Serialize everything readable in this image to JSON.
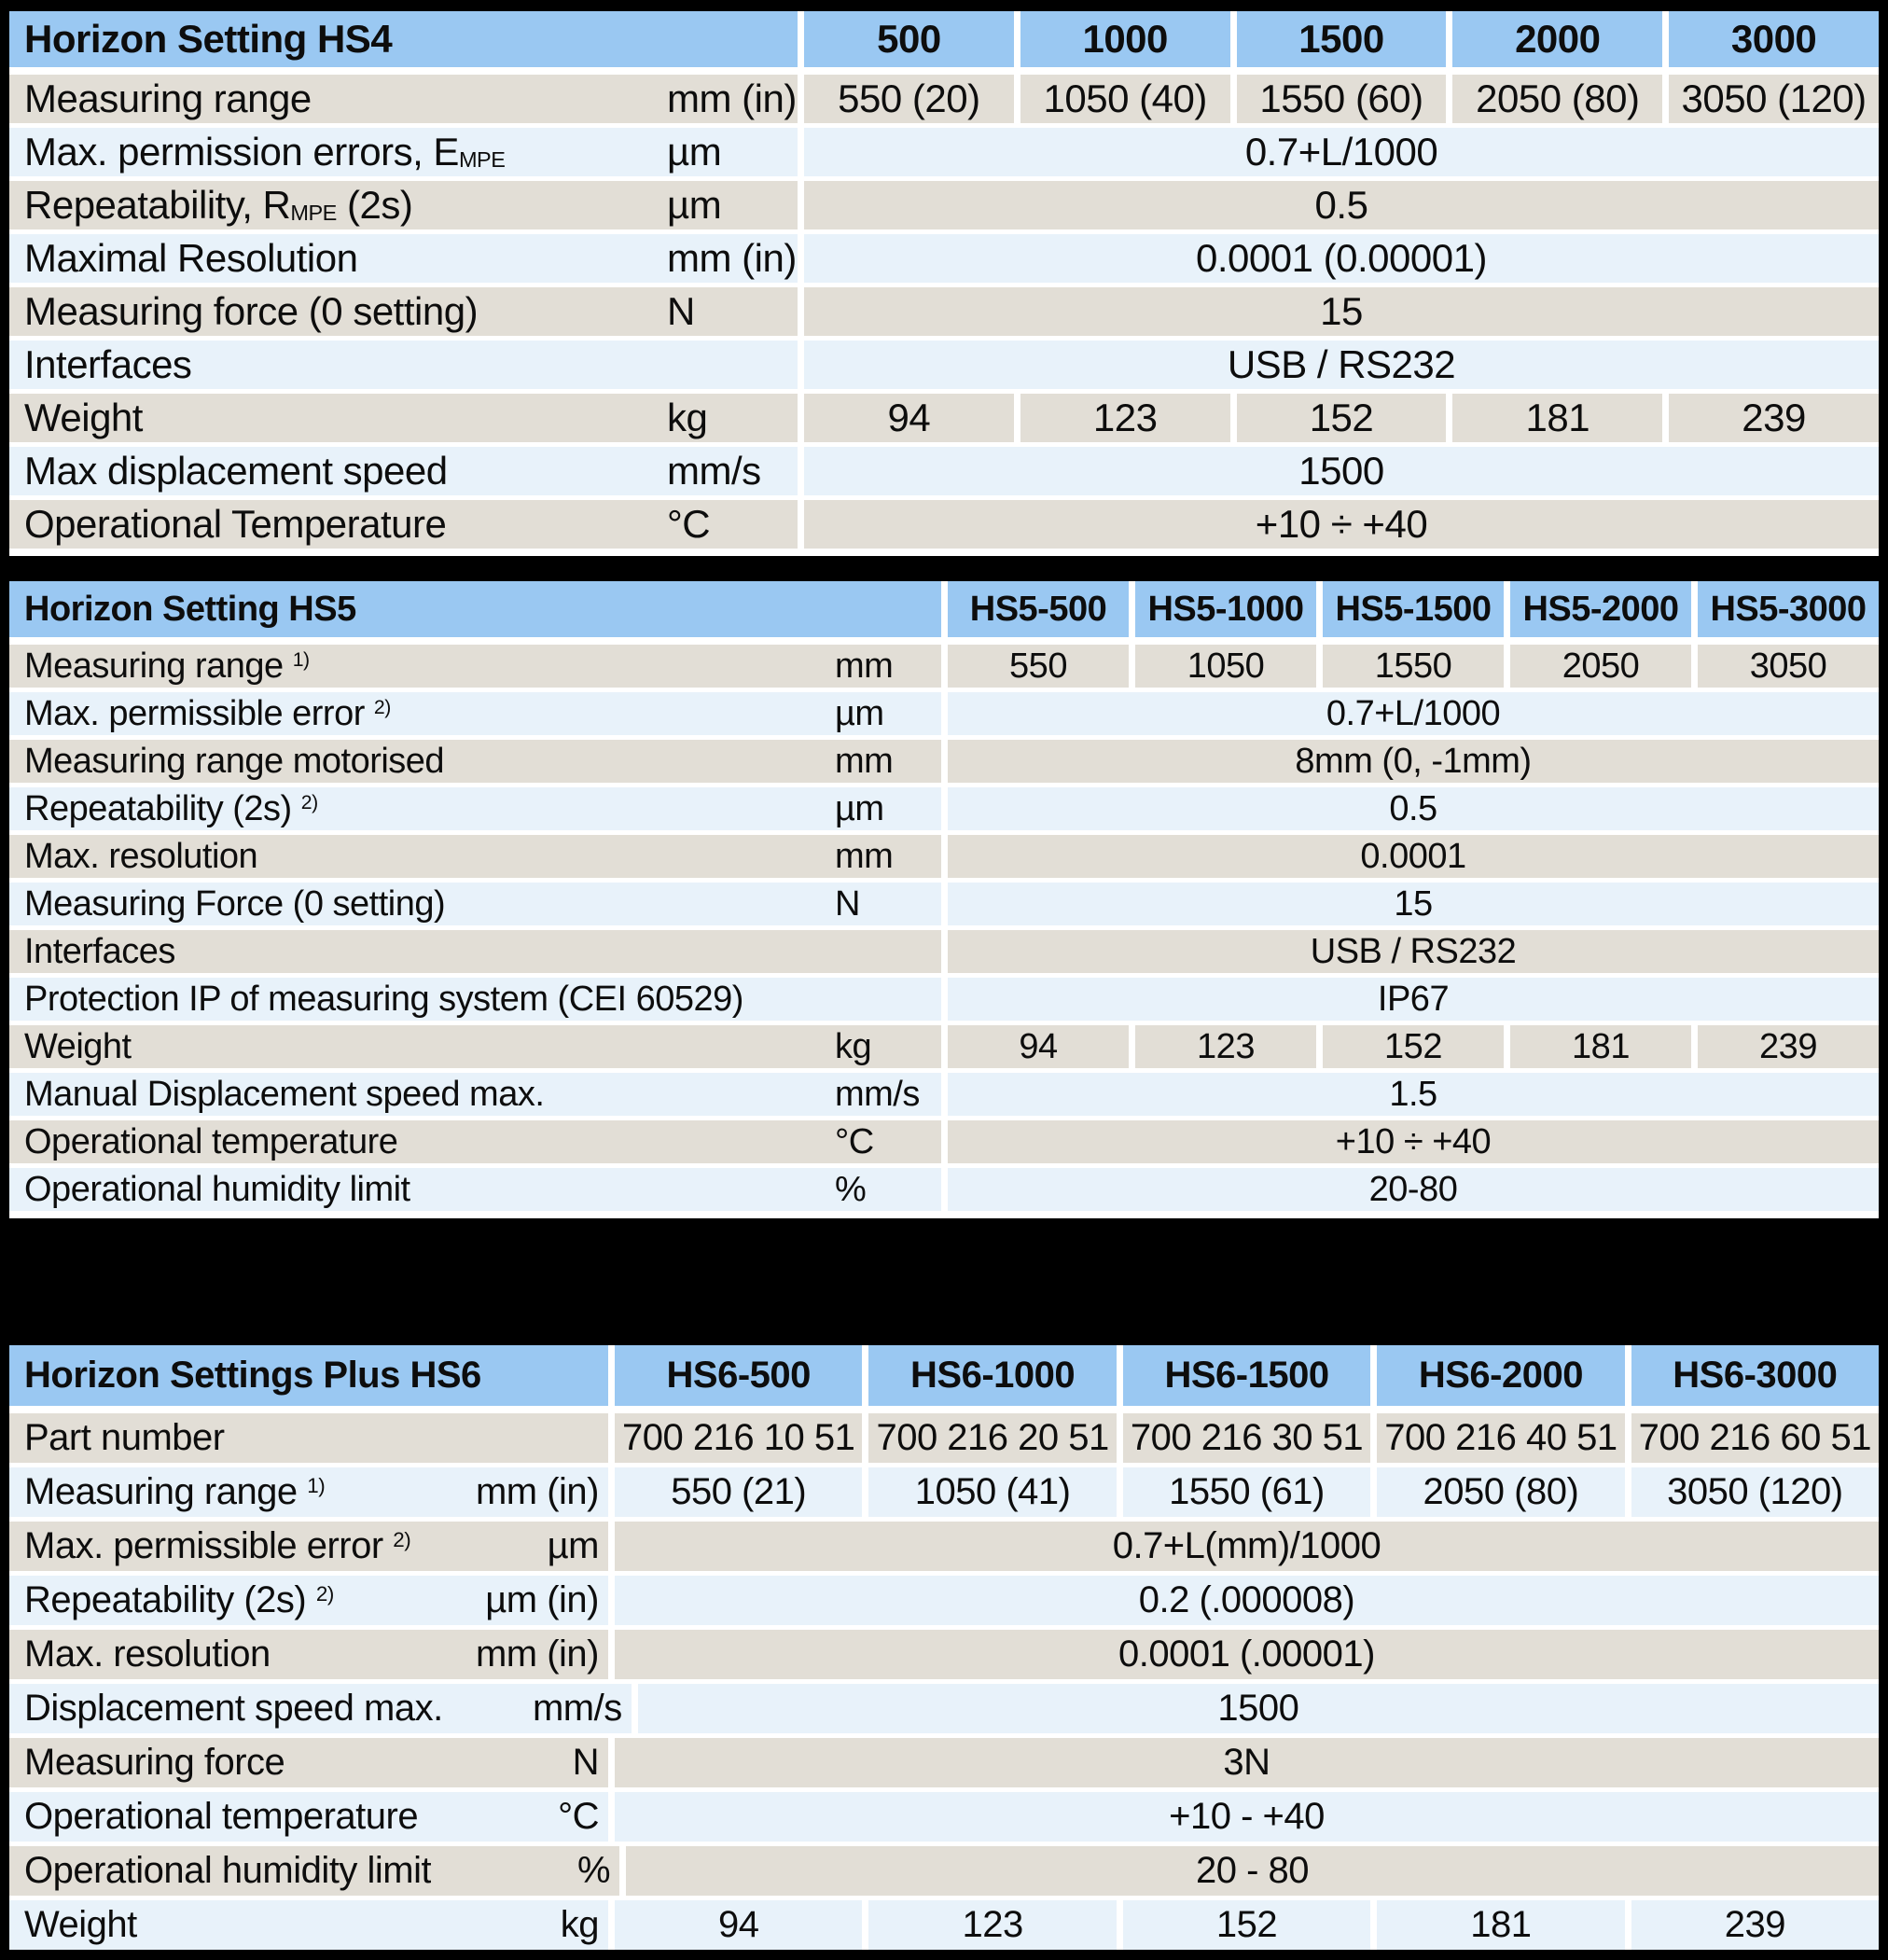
{
  "colors": {
    "header_blue": "#9AC8F2",
    "row_tan": "#E2DED6",
    "row_light_blue": "#E8F2FA",
    "gutter_white": "#FFFFFF",
    "page_background": "#000000",
    "text": "#0D0D0D"
  },
  "tables": [
    {
      "id": "hs4",
      "title": "Horizon Setting HS4",
      "columns": [
        "500",
        "1000",
        "1500",
        "2000",
        "3000"
      ],
      "rows": [
        {
          "label": {
            "pre": "Measuring range"
          },
          "unit": "mm (in)",
          "values": [
            "550 (20)",
            "1050 (40)",
            "1550 (60)",
            "2050 (80)",
            "3050 (120)"
          ]
        },
        {
          "label": {
            "pre": "Max. permission errors, E",
            "sub": "MPE"
          },
          "unit": "µm",
          "span": "0.7+L/1000"
        },
        {
          "label": {
            "pre": "Repeatability, R",
            "sub": "MPE",
            "post": " (2s)"
          },
          "unit": "µm",
          "span": "0.5"
        },
        {
          "label": {
            "pre": "Maximal Resolution"
          },
          "unit": "mm (in)",
          "span": "0.0001 (0.00001)"
        },
        {
          "label": {
            "pre": "Measuring force (0 setting)"
          },
          "unit": "N",
          "span": "15"
        },
        {
          "label": {
            "pre": "Interfaces"
          },
          "unit": "",
          "span": "USB / RS232"
        },
        {
          "label": {
            "pre": "Weight"
          },
          "unit": "kg",
          "values": [
            "94",
            "123",
            "152",
            "181",
            "239"
          ]
        },
        {
          "label": {
            "pre": "Max displacement speed"
          },
          "unit": "mm/s",
          "span": "1500"
        },
        {
          "label": {
            "pre": "Operational Temperature"
          },
          "unit": "°C",
          "span": "+10 ÷ +40"
        }
      ]
    },
    {
      "id": "hs5",
      "title": "Horizon Setting HS5",
      "columns": [
        "HS5-500",
        "HS5-1000",
        "HS5-1500",
        "HS5-2000",
        "HS5-3000"
      ],
      "rows": [
        {
          "label": {
            "pre": "Measuring range ",
            "sup": "1)"
          },
          "unit": "mm",
          "values": [
            "550",
            "1050",
            "1550",
            "2050",
            "3050"
          ]
        },
        {
          "label": {
            "pre": "Max. permissible error ",
            "sup": "2)"
          },
          "unit": "µm",
          "span": "0.7+L/1000"
        },
        {
          "label": {
            "pre": "Measuring range motorised"
          },
          "unit": "mm",
          "span": "8mm (0, -1mm)"
        },
        {
          "label": {
            "pre": "Repeatability (2s) ",
            "sup": "2)"
          },
          "unit": "µm",
          "span": "0.5"
        },
        {
          "label": {
            "pre": "Max. resolution"
          },
          "unit": "mm",
          "span": "0.0001"
        },
        {
          "label": {
            "pre": "Measuring Force (0 setting)"
          },
          "unit": "N",
          "span": "15"
        },
        {
          "label": {
            "pre": "Interfaces"
          },
          "unit": "",
          "span": "USB / RS232"
        },
        {
          "label": {
            "pre": "Protection IP of measuring system (CEI 60529)"
          },
          "unit": "",
          "span": "IP67"
        },
        {
          "label": {
            "pre": "Weight"
          },
          "unit": "kg",
          "values": [
            "94",
            "123",
            "152",
            "181",
            "239"
          ]
        },
        {
          "label": {
            "pre": "Manual Displacement speed max."
          },
          "unit": "mm/s",
          "span": "1.5"
        },
        {
          "label": {
            "pre": "Operational temperature"
          },
          "unit": "°C",
          "span": "+10 ÷ +40"
        },
        {
          "label": {
            "pre": "Operational humidity limit"
          },
          "unit": "%",
          "span": "20-80"
        }
      ]
    },
    {
      "id": "hs6",
      "title": "Horizon Settings Plus HS6",
      "columns": [
        "HS6-500",
        "HS6-1000",
        "HS6-1500",
        "HS6-2000",
        "HS6-3000"
      ],
      "rows": [
        {
          "label": {
            "pre": "Part number"
          },
          "unit": "",
          "values": [
            "700 216 10 51",
            "700 216 20 51",
            "700 216 30 51",
            "700 216 40 51",
            "700 216 60 51"
          ]
        },
        {
          "label": {
            "pre": "Measuring range ",
            "sup": "1)"
          },
          "unit": "mm (in)",
          "values": [
            "550 (21)",
            "1050 (41)",
            "1550 (61)",
            "2050 (80)",
            "3050 (120)"
          ]
        },
        {
          "label": {
            "pre": "Max. permissible error ",
            "sup": "2)"
          },
          "unit": "µm",
          "span": "0.7+L(mm)/1000"
        },
        {
          "label": {
            "pre": "Repeatability (2s) ",
            "sup": "2)"
          },
          "unit": "µm (in)",
          "span": "0.2 (.000008)"
        },
        {
          "label": {
            "pre": "Max. resolution"
          },
          "unit": "mm (in)",
          "span": "0.0001 (.00001)"
        },
        {
          "label": {
            "pre": "Displacement speed max."
          },
          "unit": "mm/s",
          "span": "1500"
        },
        {
          "label": {
            "pre": "Measuring force"
          },
          "unit": "N",
          "span": "3N"
        },
        {
          "label": {
            "pre": "Operational temperature"
          },
          "unit": "°C",
          "span": "+10 - +40"
        },
        {
          "label": {
            "pre": "Operational humidity limit"
          },
          "unit": "%",
          "span": "20 - 80"
        },
        {
          "label": {
            "pre": "Weight"
          },
          "unit": "kg",
          "values": [
            "94",
            "123",
            "152",
            "181",
            "239"
          ]
        }
      ]
    }
  ]
}
